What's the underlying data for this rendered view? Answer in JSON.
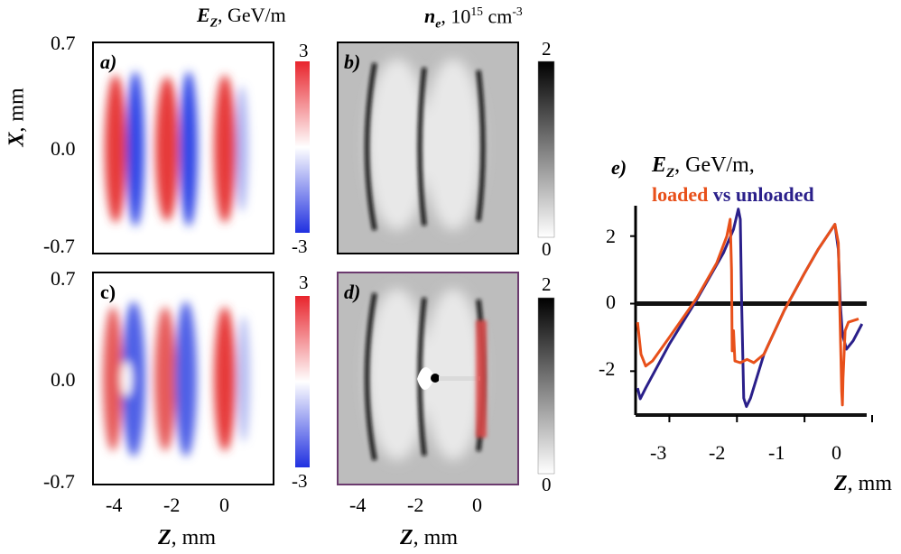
{
  "colorbar_titles": {
    "ez": {
      "sym": "E",
      "sub": "Z",
      "unit": ", GeV/m"
    },
    "ne": {
      "sym": "n",
      "sub": "e",
      "unit_pre": ", 10",
      "unit_exp": "15",
      "unit_post": " cm",
      "unit_post_exp": "-3"
    }
  },
  "panels": {
    "a": "a)",
    "b": "b)",
    "c": "c)",
    "d": "d)",
    "e": "e)"
  },
  "maps": {
    "x_ticks": [
      "-4",
      "-2",
      "0"
    ],
    "y_ticks_top": [
      "0.7",
      "0.0",
      "-0.7"
    ],
    "y_ticks_bottom": [
      "0.7",
      "0.0",
      "-0.7"
    ],
    "ylabel": {
      "sym": "X",
      "unit": ", mm"
    },
    "xlabel": {
      "sym": "Z",
      "unit": ", mm"
    },
    "ez_cbar_ticks": [
      "3",
      "-3"
    ],
    "ne_cbar_ticks": [
      "2",
      "0"
    ],
    "ez_cbar_colors": [
      "#e8242c",
      "#ffffff",
      "#2030e0"
    ],
    "ne_cbar_colors": [
      "#000000",
      "#ffffff"
    ]
  },
  "chart_data": {
    "type": "line",
    "title_sym": "E",
    "title_sub": "Z",
    "title_unit": ", GeV/m,",
    "legend": {
      "loaded": "loaded",
      "vs": " vs ",
      "unloaded": "unloaded"
    },
    "xlabel_sym": "Z",
    "xlabel_unit": ", mm",
    "xlim": [
      -3.5,
      0
    ],
    "ylim": [
      -3.3,
      2.9
    ],
    "x_ticks": [
      "-3",
      "-2",
      "-1",
      "0"
    ],
    "y_ticks": [
      "2",
      "0",
      "-2"
    ],
    "series": [
      {
        "name": "unloaded",
        "color": "#2a1f8a",
        "points": [
          [
            -3.47,
            -2.5
          ],
          [
            -3.43,
            -2.82
          ],
          [
            -3.35,
            -2.5
          ],
          [
            -3.0,
            -1.2
          ],
          [
            -2.6,
            0.1
          ],
          [
            -2.2,
            1.5
          ],
          [
            -2.05,
            2.2
          ],
          [
            -1.98,
            2.8
          ],
          [
            -1.95,
            2.5
          ],
          [
            -1.93,
            0.0
          ],
          [
            -1.9,
            -2.8
          ],
          [
            -1.86,
            -3.05
          ],
          [
            -1.8,
            -2.8
          ],
          [
            -1.6,
            -1.5
          ],
          [
            -1.3,
            -0.2
          ],
          [
            -1.0,
            0.9
          ],
          [
            -0.8,
            1.6
          ],
          [
            -0.6,
            2.2
          ],
          [
            -0.55,
            2.35
          ],
          [
            -0.5,
            1.6
          ],
          [
            -0.47,
            0.0
          ],
          [
            -0.44,
            -0.9
          ],
          [
            -0.38,
            -1.35
          ],
          [
            -0.28,
            -1.1
          ],
          [
            -0.15,
            -0.6
          ]
        ]
      },
      {
        "name": "loaded",
        "color": "#e8501a",
        "points": [
          [
            -3.47,
            -0.55
          ],
          [
            -3.42,
            -1.5
          ],
          [
            -3.35,
            -1.85
          ],
          [
            -3.25,
            -1.7
          ],
          [
            -3.0,
            -1.0
          ],
          [
            -2.6,
            0.15
          ],
          [
            -2.3,
            1.2
          ],
          [
            -2.15,
            2.0
          ],
          [
            -2.1,
            2.5
          ],
          [
            -2.08,
            1.0
          ],
          [
            -2.07,
            -1.4
          ],
          [
            -2.05,
            -0.8
          ],
          [
            -2.03,
            -1.7
          ],
          [
            -1.95,
            -1.75
          ],
          [
            -1.85,
            -1.65
          ],
          [
            -1.75,
            -1.75
          ],
          [
            -1.6,
            -1.5
          ],
          [
            -1.3,
            -0.2
          ],
          [
            -1.0,
            0.9
          ],
          [
            -0.8,
            1.6
          ],
          [
            -0.6,
            2.2
          ],
          [
            -0.55,
            2.35
          ],
          [
            -0.5,
            1.8
          ],
          [
            -0.48,
            0.0
          ],
          [
            -0.45,
            -2.6
          ],
          [
            -0.44,
            -3.0
          ],
          [
            -0.43,
            -2.2
          ],
          [
            -0.4,
            -0.8
          ],
          [
            -0.35,
            -0.55
          ],
          [
            -0.2,
            -0.45
          ]
        ]
      }
    ]
  }
}
